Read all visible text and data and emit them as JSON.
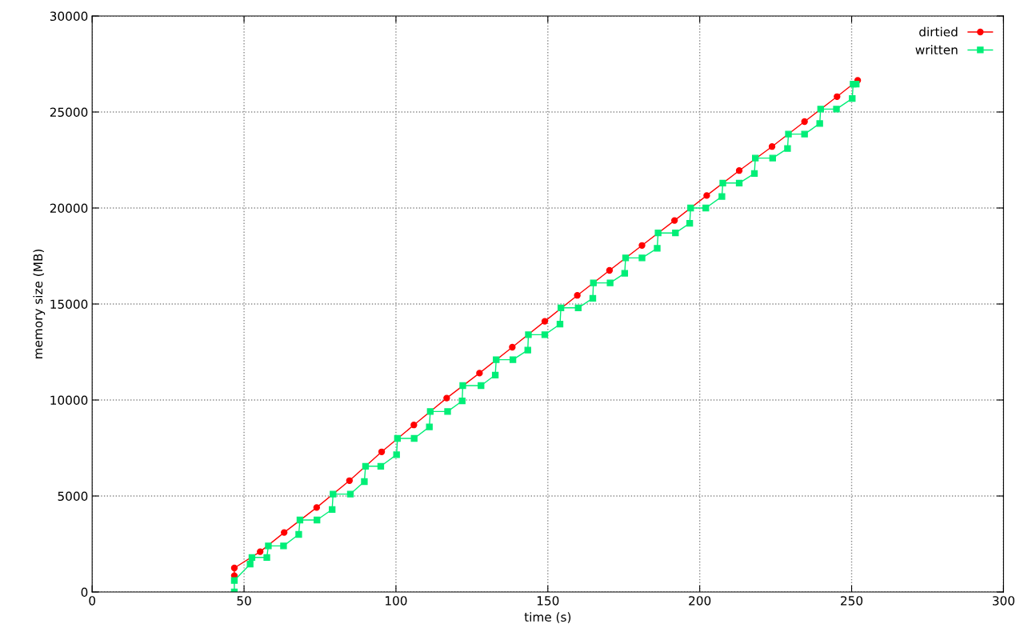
{
  "chart_data": {
    "type": "line",
    "xlabel": "time (s)",
    "ylabel": "memory size (MB)",
    "xlim": [
      0,
      300
    ],
    "xticks": [
      0,
      50,
      100,
      150,
      200,
      250,
      300
    ],
    "ylim": [
      0,
      30000
    ],
    "yticks": [
      0,
      5000,
      10000,
      15000,
      20000,
      25000,
      30000
    ],
    "grid": true,
    "legend": "top right",
    "series": [
      {
        "name": "dirtied",
        "color": "#ff0000",
        "marker": "circle",
        "x": [
          46.8,
          46.8,
          55.3,
          63.2,
          73.9,
          84.7,
          95.3,
          105.9,
          116.7,
          127.5,
          138.3,
          149.0,
          159.7,
          170.3,
          181.0,
          191.7,
          202.3,
          213.0,
          223.8,
          234.5,
          245.2,
          252.0
        ],
        "values": [
          850,
          1250,
          2100,
          3100,
          4400,
          5800,
          7300,
          8700,
          10100,
          11400,
          12750,
          14100,
          15450,
          16750,
          18050,
          19350,
          20650,
          21950,
          23200,
          24500,
          25800,
          26650
        ]
      },
      {
        "name": "written",
        "color": "#00ee77",
        "marker": "square",
        "x": [
          46.8,
          46.8,
          52.0,
          52.6,
          57.5,
          58.0,
          63.0,
          68.0,
          68.4,
          74.0,
          79.0,
          79.3,
          85.0,
          89.6,
          90.0,
          95.0,
          100.2,
          100.5,
          106.0,
          111.0,
          111.3,
          117.0,
          121.8,
          122.0,
          128.0,
          132.7,
          133.0,
          138.5,
          143.4,
          143.6,
          149.0,
          154.0,
          154.3,
          160.0,
          164.8,
          165.0,
          170.5,
          175.3,
          175.6,
          181.0,
          186.0,
          186.3,
          192.0,
          196.7,
          197.0,
          202.0,
          207.3,
          207.6,
          213.0,
          218.0,
          218.3,
          224.0,
          228.9,
          229.2,
          234.5,
          239.5,
          239.8,
          245.0,
          250.2,
          250.5,
          251.5
        ],
        "values": [
          0,
          600,
          1450,
          1800,
          1800,
          2400,
          2400,
          3000,
          3750,
          3750,
          4300,
          5100,
          5100,
          5750,
          6550,
          6550,
          7150,
          8000,
          8000,
          8600,
          9400,
          9400,
          9950,
          10750,
          10750,
          11300,
          12100,
          12100,
          12600,
          13400,
          13400,
          13950,
          14800,
          14800,
          15300,
          16100,
          16100,
          16600,
          17400,
          17400,
          17900,
          18700,
          18700,
          19200,
          20000,
          20000,
          20600,
          21300,
          21300,
          21800,
          22600,
          22600,
          23100,
          23850,
          23850,
          24400,
          25150,
          25150,
          25700,
          26450,
          26450
        ]
      }
    ]
  }
}
